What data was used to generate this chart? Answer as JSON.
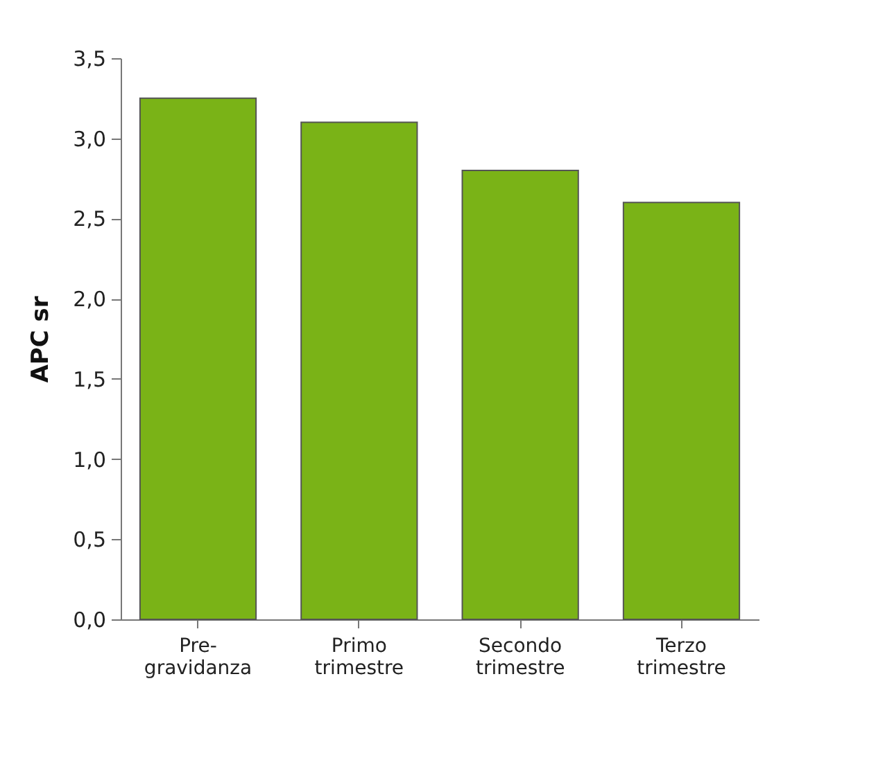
{
  "chart_data": {
    "type": "bar",
    "ylabel": "APC sr",
    "categories": [
      "Pre-gravidanza",
      "Primo trimestre",
      "Secondo trimestre",
      "Terzo trimestre"
    ],
    "values": [
      3.25,
      3.1,
      2.8,
      2.6
    ],
    "color": "#7ab317",
    "ylim": [
      0,
      3.5
    ],
    "yticks": [
      {
        "value": 0,
        "label": "0,0"
      },
      {
        "value": 0.5,
        "label": "0,5"
      },
      {
        "value": 1,
        "label": "1,0"
      },
      {
        "value": 1.5,
        "label": "1,5"
      },
      {
        "value": 2,
        "label": "2,0"
      },
      {
        "value": 2.5,
        "label": "2,5"
      },
      {
        "value": 3,
        "label": "3,0"
      },
      {
        "value": 3.5,
        "label": "3,5"
      }
    ],
    "grid": false
  }
}
